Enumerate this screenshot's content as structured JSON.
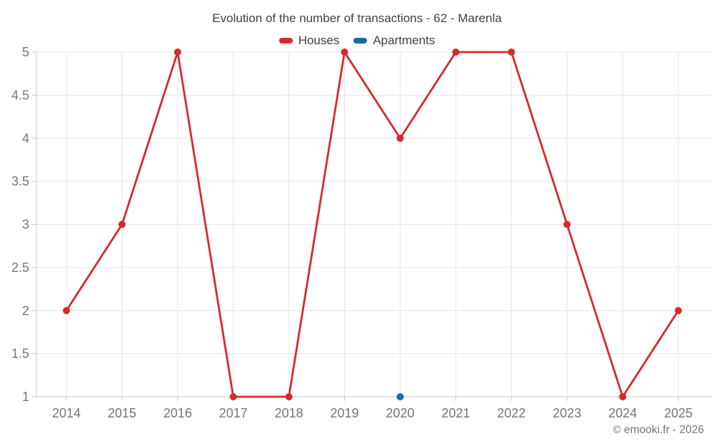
{
  "chart_data": {
    "type": "line",
    "title": "Evolution of the number of transactions - 62 - Marenla",
    "categories": [
      "2014",
      "2015",
      "2016",
      "2017",
      "2018",
      "2019",
      "2020",
      "2021",
      "2022",
      "2023",
      "2024",
      "2025"
    ],
    "series": [
      {
        "name": "Houses",
        "color": "#d7282c",
        "values": [
          2,
          3,
          5,
          1,
          1,
          5,
          4,
          5,
          5,
          3,
          1,
          2
        ]
      },
      {
        "name": "Apartments",
        "color": "#1170a3",
        "values": [
          null,
          null,
          null,
          null,
          null,
          null,
          1,
          null,
          null,
          null,
          null,
          null
        ]
      }
    ],
    "xlabel": "",
    "ylabel": "",
    "ylim": [
      1,
      5
    ],
    "yticks": [
      1,
      1.5,
      2,
      2.5,
      3,
      3.5,
      4,
      4.5,
      5
    ],
    "ytick_labels": [
      "1",
      "1.5",
      "2",
      "2.5",
      "3",
      "3.5",
      "4",
      "4.5",
      "5"
    ],
    "grid": true,
    "legend_position": "top",
    "copyright": "© emooki.fr - 2026"
  },
  "colors": {
    "grid_line": "#e6e6e6",
    "axis_line": "#c9c9c9",
    "tick_label": "#757575",
    "title_text": "#424242",
    "background": "#ffffff"
  }
}
